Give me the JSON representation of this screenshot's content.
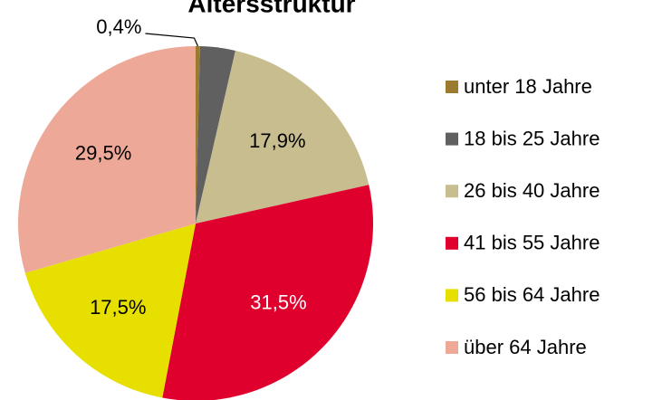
{
  "chart_data": {
    "type": "pie",
    "title": "Altersstruktur",
    "categories": [
      "unter 18 Jahre",
      "18 bis 25 Jahre",
      "26 bis 40 Jahre",
      "41 bis 55 Jahre",
      "56 bis 64 Jahre",
      "über 64 Jahre"
    ],
    "values": [
      0.4,
      3.2,
      17.9,
      31.5,
      17.5,
      29.5
    ],
    "value_labels": [
      "0,4%",
      null,
      "17,9%",
      "31,5%",
      "17,5%",
      "29,5%"
    ],
    "colors": [
      "#9c7a2e",
      "#606060",
      "#c8bd8f",
      "#e0002e",
      "#e6df00",
      "#eda898"
    ],
    "legend": "right"
  }
}
